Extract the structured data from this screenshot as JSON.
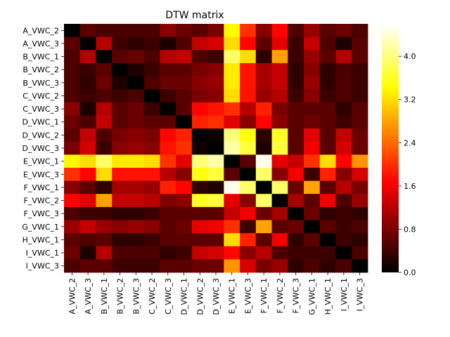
{
  "chart_data": {
    "type": "heatmap",
    "title": "DTW matrix",
    "xlabel": "",
    "ylabel": "",
    "labels": [
      "A_VWC_2",
      "A_VWC_3",
      "B_VWC_1",
      "B_VWC_2",
      "B_VWC_3",
      "C_VWC_2",
      "C_VWC_3",
      "D_VWC_1",
      "D_VWC_2",
      "D_VWC_3",
      "E_VWC_1",
      "E_VWC_3",
      "F_VWC_1",
      "F_VWC_2",
      "F_VWC_3",
      "G_VWC_1",
      "H_VWC_1",
      "I_VWC_1",
      "I_VWC_3"
    ],
    "matrix": [
      [
        0.0,
        0.6,
        0.5,
        0.5,
        0.5,
        0.5,
        0.9,
        0.7,
        0.6,
        0.8,
        3.4,
        2.0,
        0.9,
        1.7,
        0.5,
        1.0,
        0.6,
        0.7,
        0.5
      ],
      [
        0.6,
        0.0,
        1.2,
        0.4,
        0.3,
        0.4,
        0.2,
        0.5,
        1.3,
        1.4,
        3.2,
        1.7,
        0.6,
        1.5,
        0.4,
        1.3,
        0.5,
        0.2,
        0.6
      ],
      [
        0.5,
        1.2,
        0.0,
        0.6,
        0.7,
        0.5,
        1.2,
        1.3,
        0.5,
        0.4,
        3.9,
        3.2,
        0.3,
        2.8,
        0.4,
        1.0,
        0.6,
        1.2,
        0.6
      ],
      [
        0.5,
        0.4,
        0.6,
        0.0,
        0.2,
        0.4,
        0.6,
        0.6,
        0.8,
        0.9,
        3.3,
        1.8,
        1.1,
        1.3,
        0.3,
        0.9,
        0.3,
        0.5,
        0.4
      ],
      [
        0.5,
        0.3,
        0.7,
        0.2,
        0.0,
        0.5,
        0.7,
        0.7,
        0.9,
        1.0,
        3.3,
        1.8,
        1.1,
        1.3,
        0.3,
        1.0,
        0.3,
        0.5,
        0.4
      ],
      [
        0.5,
        0.4,
        0.5,
        0.4,
        0.5,
        0.0,
        0.4,
        0.6,
        0.8,
        0.9,
        3.2,
        1.8,
        1.0,
        1.2,
        0.4,
        0.9,
        0.4,
        0.5,
        0.4
      ],
      [
        0.9,
        0.2,
        1.2,
        0.6,
        0.7,
        0.4,
        0.0,
        0.6,
        1.7,
        1.8,
        2.0,
        1.2,
        1.9,
        0.8,
        0.6,
        0.6,
        0.6,
        0.3,
        0.6
      ],
      [
        0.7,
        0.5,
        1.3,
        0.6,
        0.7,
        0.6,
        0.6,
        0.0,
        1.9,
        2.0,
        1.5,
        0.9,
        1.7,
        0.9,
        0.6,
        0.7,
        0.6,
        0.4,
        0.6
      ],
      [
        0.6,
        1.3,
        0.5,
        0.8,
        0.9,
        0.8,
        1.7,
        1.9,
        0.0,
        0.1,
        4.0,
        3.5,
        0.3,
        3.6,
        0.6,
        1.5,
        0.6,
        1.3,
        0.7
      ],
      [
        0.8,
        1.4,
        0.4,
        0.9,
        1.0,
        0.9,
        1.8,
        2.0,
        0.1,
        0.0,
        4.2,
        3.7,
        0.2,
        3.7,
        0.6,
        1.6,
        0.6,
        1.4,
        0.7
      ],
      [
        3.4,
        3.2,
        3.9,
        3.3,
        3.3,
        3.2,
        2.0,
        1.5,
        4.0,
        4.2,
        0.0,
        0.6,
        4.5,
        1.5,
        1.3,
        2.0,
        3.2,
        1.7,
        2.7
      ],
      [
        2.0,
        1.7,
        3.2,
        1.8,
        1.8,
        1.8,
        1.2,
        0.9,
        3.5,
        3.7,
        0.6,
        0.0,
        3.9,
        0.9,
        1.6,
        0.4,
        1.9,
        0.9,
        1.4
      ],
      [
        0.9,
        0.6,
        0.3,
        1.1,
        1.1,
        1.0,
        1.9,
        1.7,
        0.3,
        0.2,
        4.5,
        3.9,
        0.0,
        3.9,
        0.7,
        2.8,
        0.6,
        1.2,
        0.8
      ],
      [
        1.7,
        1.5,
        2.8,
        1.3,
        1.3,
        1.2,
        0.8,
        0.9,
        3.6,
        3.7,
        1.5,
        0.9,
        3.9,
        0.0,
        1.1,
        0.6,
        1.6,
        0.5,
        1.0
      ],
      [
        0.5,
        0.4,
        0.4,
        0.3,
        0.3,
        0.4,
        0.6,
        0.6,
        0.6,
        0.6,
        1.3,
        1.6,
        0.7,
        1.1,
        0.0,
        0.7,
        0.3,
        0.4,
        0.3
      ],
      [
        1.0,
        1.3,
        1.0,
        0.9,
        1.0,
        0.9,
        0.6,
        0.7,
        1.5,
        1.6,
        2.0,
        0.4,
        2.8,
        0.6,
        0.7,
        0.0,
        0.6,
        0.4,
        0.5
      ],
      [
        0.6,
        0.5,
        0.6,
        0.3,
        0.3,
        0.4,
        0.6,
        0.6,
        0.6,
        0.6,
        3.2,
        1.9,
        0.6,
        1.6,
        0.3,
        0.6,
        0.0,
        0.4,
        0.3
      ],
      [
        0.7,
        0.2,
        1.2,
        0.5,
        0.5,
        0.5,
        0.3,
        0.4,
        1.3,
        1.4,
        1.7,
        0.9,
        1.2,
        0.5,
        0.4,
        0.4,
        0.4,
        0.0,
        0.5
      ],
      [
        0.5,
        0.6,
        0.6,
        0.4,
        0.4,
        0.4,
        0.6,
        0.6,
        0.7,
        0.7,
        2.7,
        1.4,
        0.8,
        1.0,
        0.3,
        0.5,
        0.3,
        0.5,
        0.0
      ]
    ],
    "colorbar": {
      "colormap": "hot",
      "range": [
        0.0,
        4.6
      ],
      "ticks": [
        0.0,
        0.8,
        1.6,
        2.4,
        3.2,
        4.0
      ],
      "tick_labels": [
        "0.0",
        "0.8",
        "1.6",
        "2.4",
        "3.2",
        "4.0"
      ]
    },
    "grid": false,
    "legend": "colorbar-right"
  }
}
